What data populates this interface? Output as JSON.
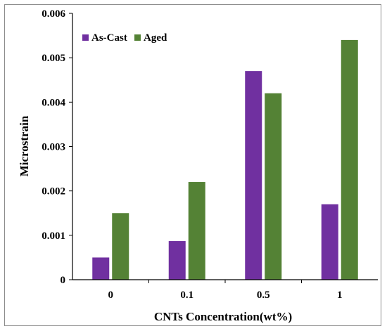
{
  "chart_data": {
    "type": "bar",
    "categories": [
      "0",
      "0.1",
      "0.5",
      "1"
    ],
    "series": [
      {
        "name": "As-Cast",
        "values": [
          0.0005,
          0.00087,
          0.0047,
          0.0017
        ],
        "color": "#7030A0"
      },
      {
        "name": "Aged",
        "values": [
          0.0015,
          0.0022,
          0.0042,
          0.0054
        ],
        "color": "#548235"
      }
    ],
    "xlabel": "CNTs Concentration(wt%)",
    "ylabel": "Microstrain",
    "ylim": [
      0,
      0.006
    ],
    "yticks": [
      "0",
      "0.001",
      "0.002",
      "0.003",
      "0.004",
      "0.005",
      "0.006"
    ],
    "grid": false,
    "legend_position": "top-left"
  }
}
